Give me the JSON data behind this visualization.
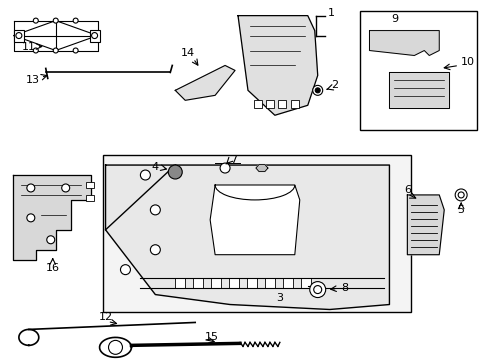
{
  "bg_color": "#ffffff",
  "line_color": "#000000",
  "fill_light": "#e8e8e8",
  "fill_white": "#ffffff",
  "fill_gray": "#d0d0d0"
}
